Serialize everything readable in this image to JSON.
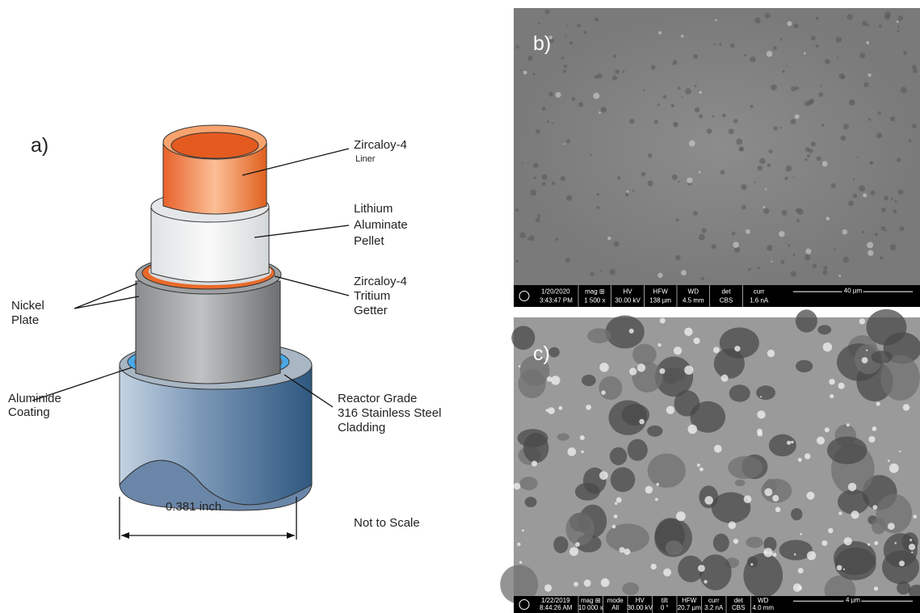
{
  "panel_a": {
    "label": "a)",
    "callouts": [
      {
        "lines": [
          "Zircaloy-4",
          "Liner"
        ]
      },
      {
        "lines": [
          "Lithium",
          "Aluminate",
          "Pellet"
        ]
      },
      {
        "lines": [
          "Zircaloy-4",
          "Tritium",
          "Getter"
        ]
      },
      {
        "lines": [
          "Nickel",
          "Plate"
        ]
      },
      {
        "lines": [
          "Aluminide",
          "Coating"
        ]
      },
      {
        "lines": [
          "Reactor Grade",
          "316 Stainless Steel",
          "Cladding"
        ]
      }
    ],
    "dimension": "0.381 inch",
    "note": "Not to Scale"
  },
  "panel_b": {
    "label": "b)",
    "date": "1/20/2020",
    "time": "3:43:47 PM",
    "fields": [
      {
        "name": "mag ⊞",
        "value": "1 500 x"
      },
      {
        "name": "HV",
        "value": "30.00 kV"
      },
      {
        "name": "HFW",
        "value": "138 µm"
      },
      {
        "name": "WD",
        "value": "4.5 mm"
      },
      {
        "name": "det",
        "value": "CBS"
      },
      {
        "name": "curr",
        "value": "1.6 nA"
      }
    ],
    "scale": "40 µm"
  },
  "panel_c": {
    "label": "c)",
    "date": "1/22/2019",
    "time": "8:44:26 AM",
    "fields": [
      {
        "name": "mag ⊞",
        "value": "10 000 x"
      },
      {
        "name": "mode",
        "value": "All"
      },
      {
        "name": "HV",
        "value": "30.00 kV"
      },
      {
        "name": "tilt",
        "value": "0 °"
      },
      {
        "name": "HFW",
        "value": "20.7 µm"
      },
      {
        "name": "curr",
        "value": "3.2 nA"
      },
      {
        "name": "det",
        "value": "CBS"
      },
      {
        "name": "WD",
        "value": "4.0 mm"
      }
    ],
    "scale": "4 µm"
  }
}
